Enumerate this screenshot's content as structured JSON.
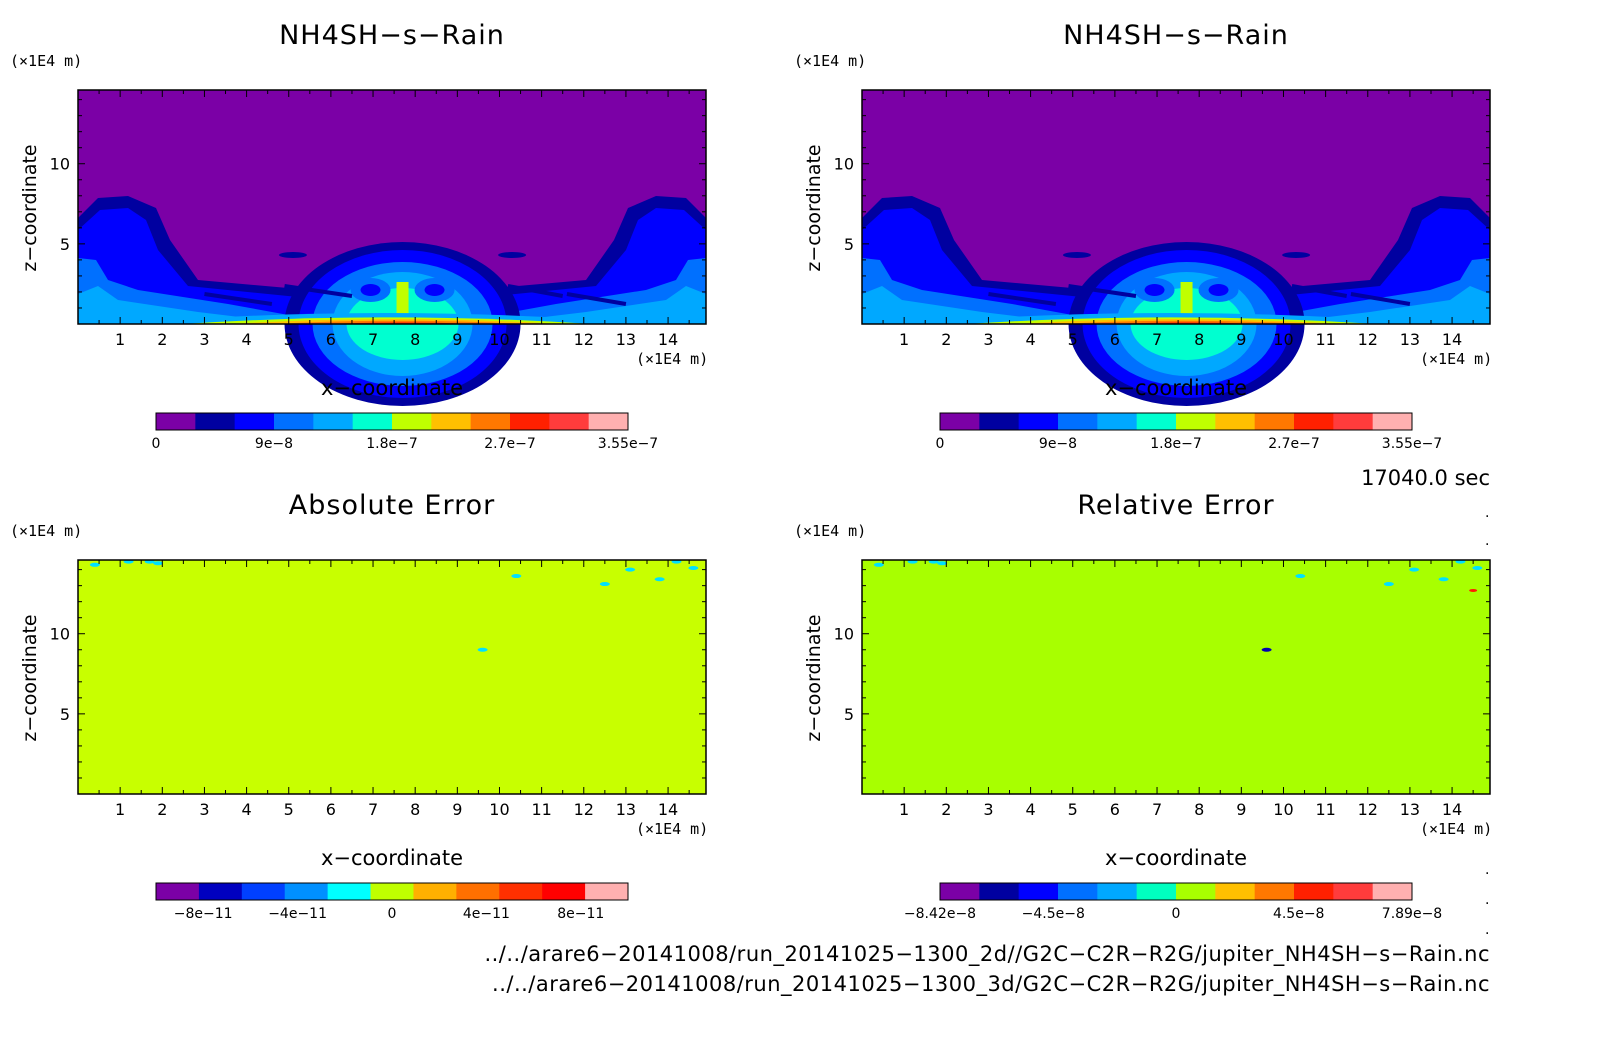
{
  "panels": [
    {
      "title": "NH4SH−s−Rain",
      "y_unit": "(×1E4 m)",
      "x_unit": "(×1E4 m)",
      "xlabel": "x−coordinate",
      "ylabel": "z−coordinate",
      "colorbar_labels": [
        "0",
        "9e−8",
        "1.8e−7",
        "2.7e−7",
        "3.55e−7"
      ],
      "colorbar_colors": [
        "#7b00a6",
        "#0000a0",
        "#0000ff",
        "#0070ff",
        "#00a8ff",
        "#00ffd0",
        "#c0ff00",
        "#ffc000",
        "#ff7800",
        "#ff2000",
        "#ff3c3c",
        "#ffb0b0"
      ]
    },
    {
      "title": "NH4SH−s−Rain",
      "y_unit": "(×1E4 m)",
      "x_unit": "(×1E4 m)",
      "xlabel": "x−coordinate",
      "ylabel": "z−coordinate",
      "colorbar_labels": [
        "0",
        "9e−8",
        "1.8e−7",
        "2.7e−7",
        "3.55e−7"
      ],
      "colorbar_colors": [
        "#7b00a6",
        "#0000a0",
        "#0000ff",
        "#0070ff",
        "#00a8ff",
        "#00ffd0",
        "#c0ff00",
        "#ffc000",
        "#ff7800",
        "#ff2000",
        "#ff3c3c",
        "#ffb0b0"
      ]
    },
    {
      "title": "Absolute Error",
      "y_unit": "(×1E4 m)",
      "x_unit": "(×1E4 m)",
      "xlabel": "x−coordinate",
      "ylabel": "z−coordinate",
      "colorbar_labels": [
        "−8e−11",
        "−4e−11",
        "0",
        "4e−11",
        "8e−11"
      ],
      "colorbar_colors": [
        "#7b00a6",
        "#0000c0",
        "#0040ff",
        "#0090ff",
        "#00ffff",
        "#c0ff00",
        "#ffb000",
        "#ff7000",
        "#ff3000",
        "#ff0000",
        "#ffb0b0"
      ]
    },
    {
      "title": "Relative Error",
      "y_unit": "(×1E4 m)",
      "x_unit": "(×1E4 m)",
      "xlabel": "x−coordinate",
      "ylabel": "z−coordinate",
      "colorbar_labels": [
        "−8.42e−8",
        "−4.5e−8",
        "0",
        "4.5e−8",
        "7.89e−8"
      ],
      "colorbar_colors": [
        "#7b00a6",
        "#0000a0",
        "#0000ff",
        "#0070ff",
        "#00a8ff",
        "#00ffc0",
        "#a8ff00",
        "#ffc000",
        "#ff7800",
        "#ff2000",
        "#ff3c3c",
        "#ffb0b0"
      ]
    }
  ],
  "timestamp": "17040.0 sec",
  "footer_lines": [
    "../../arare6−20141008/run_20141025−1300_2d//G2C−C2R−R2G/jupiter_NH4SH−s−Rain.nc",
    "../../arare6−20141008/run_20141025−1300_3d/G2C−C2R−R2G/jupiter_NH4SH−s−Rain.nc"
  ],
  "chart_data": [
    {
      "type": "heatmap",
      "title": "NH4SH−s−Rain",
      "xlabel": "x−coordinate",
      "ylabel": "z−coordinate",
      "x_unit": "(×1E4 m)",
      "y_unit": "(×1E4 m)",
      "xlim": [
        0,
        14.9
      ],
      "ylim": [
        0,
        14.6
      ],
      "x_ticks": [
        1,
        2,
        3,
        4,
        5,
        6,
        7,
        8,
        9,
        10,
        11,
        12,
        13,
        14
      ],
      "y_ticks": [
        5,
        10
      ],
      "colorbar_ticks": [
        "0",
        "9e−8",
        "1.8e−7",
        "2.7e−7",
        "3.55e−7"
      ],
      "background_color": "#7b00a6",
      "features": [
        {
          "name": "left plume",
          "color": "#0000ff"
        },
        {
          "name": "right plume",
          "color": "#0000ff"
        },
        {
          "name": "central dome",
          "color": "#0070ff"
        },
        {
          "name": "surface layer",
          "color": "#ff7800"
        }
      ]
    },
    {
      "type": "heatmap",
      "title": "NH4SH−s−Rain",
      "xlabel": "x−coordinate",
      "ylabel": "z−coordinate",
      "x_unit": "(×1E4 m)",
      "y_unit": "(×1E4 m)",
      "xlim": [
        0,
        14.9
      ],
      "ylim": [
        0,
        14.6
      ],
      "x_ticks": [
        1,
        2,
        3,
        4,
        5,
        6,
        7,
        8,
        9,
        10,
        11,
        12,
        13,
        14
      ],
      "y_ticks": [
        5,
        10
      ],
      "colorbar_ticks": [
        "0",
        "9e−8",
        "1.8e−7",
        "2.7e−7",
        "3.55e−7"
      ],
      "background_color": "#7b00a6"
    },
    {
      "type": "heatmap",
      "title": "Absolute Error",
      "xlabel": "x−coordinate",
      "ylabel": "z−coordinate",
      "x_unit": "(×1E4 m)",
      "y_unit": "(×1E4 m)",
      "xlim": [
        0,
        14.9
      ],
      "ylim": [
        0,
        14.6
      ],
      "x_ticks": [
        1,
        2,
        3,
        4,
        5,
        6,
        7,
        8,
        9,
        10,
        11,
        12,
        13,
        14
      ],
      "y_ticks": [
        5,
        10
      ],
      "colorbar_ticks": [
        "−8e−11",
        "−4e−11",
        "0",
        "4e−11",
        "8e−11"
      ],
      "background_color": "#c8ff00"
    },
    {
      "type": "heatmap",
      "title": "Relative Error",
      "xlabel": "x−coordinate",
      "ylabel": "z−coordinate",
      "x_unit": "(×1E4 m)",
      "y_unit": "(×1E4 m)",
      "xlim": [
        0,
        14.9
      ],
      "ylim": [
        0,
        14.6
      ],
      "x_ticks": [
        1,
        2,
        3,
        4,
        5,
        6,
        7,
        8,
        9,
        10,
        11,
        12,
        13,
        14
      ],
      "y_ticks": [
        5,
        10
      ],
      "colorbar_ticks": [
        "−8.42e−8",
        "−4.5e−8",
        "0",
        "4.5e−8",
        "7.89e−8"
      ],
      "background_color": "#a8ff00"
    }
  ]
}
